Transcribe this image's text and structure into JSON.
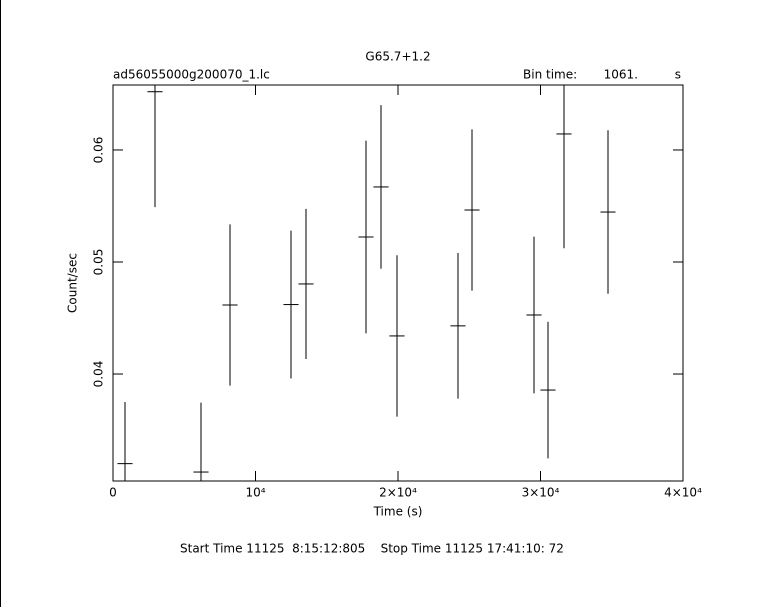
{
  "chart_data": {
    "type": "errorbar",
    "title": "G65.7+1.2",
    "file_label": "ad56055000g200070_1.lc",
    "bin_time_label": "Bin time:",
    "bin_time": {
      "value": 1061,
      "label": "1061."
    },
    "bin_time_unit": "s",
    "x_label": "Time (s)",
    "y_label": "Count/sec",
    "footer": "Start Time 11125  8:15:12:805    Stop Time 11125 17:41:10: 72",
    "x": [
      842,
      2947,
      6175,
      8211,
      12491,
      13544,
      17754,
      18807,
      19930,
      24210,
      25193,
      29544,
      30526,
      31649,
      34737
    ],
    "values": [
      0.032,
      0.0652,
      0.03125,
      0.04616,
      0.0462,
      0.04804,
      0.05223,
      0.0567,
      0.0434,
      0.0443,
      0.05464,
      0.04527,
      0.03857,
      0.06143,
      0.05446
    ],
    "errors": [
      0.0055,
      0.0103,
      0.0062,
      0.0072,
      0.0066,
      0.0067,
      0.0086,
      0.0073,
      0.0072,
      0.0065,
      0.0072,
      0.007,
      0.0061,
      0.0102,
      0.0073
    ],
    "color": "#000000",
    "xlim": [
      0,
      40000
    ],
    "ylim": [
      0.03045,
      0.0658
    ],
    "xticks": [
      0,
      {
        "value": 10000,
        "label": "10⁴"
      },
      {
        "value": 20000,
        "label": "2×10⁴"
      },
      {
        "value": 30000,
        "label": "3×10⁴"
      },
      {
        "value": 40000,
        "label": "4×10⁴"
      }
    ],
    "yticks": [
      0.04,
      0.05,
      0.06
    ]
  }
}
